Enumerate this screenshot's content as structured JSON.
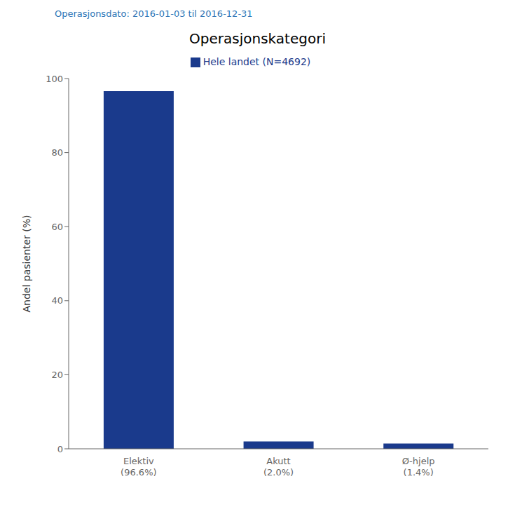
{
  "chart_data": {
    "type": "bar",
    "title": "Operasjonskategori",
    "subtitle": "Operasjonsdato: 2016-01-03 til 2016-12-31",
    "ylabel": "Andel pasienter (%)",
    "categories": [
      "Elektiv\n(96.6%)",
      "Akutt\n(2.0%)",
      "Ø-hjelp\n(1.4%)"
    ],
    "series": [
      {
        "name": "Hele landet (N=4692)",
        "color": "#1a3a8c",
        "values": [
          96.6,
          2.0,
          1.4
        ]
      }
    ],
    "ylim": [
      0,
      100
    ],
    "yticks": [
      0,
      20,
      40,
      60,
      80,
      100
    ],
    "legend": "top",
    "grid": false
  }
}
